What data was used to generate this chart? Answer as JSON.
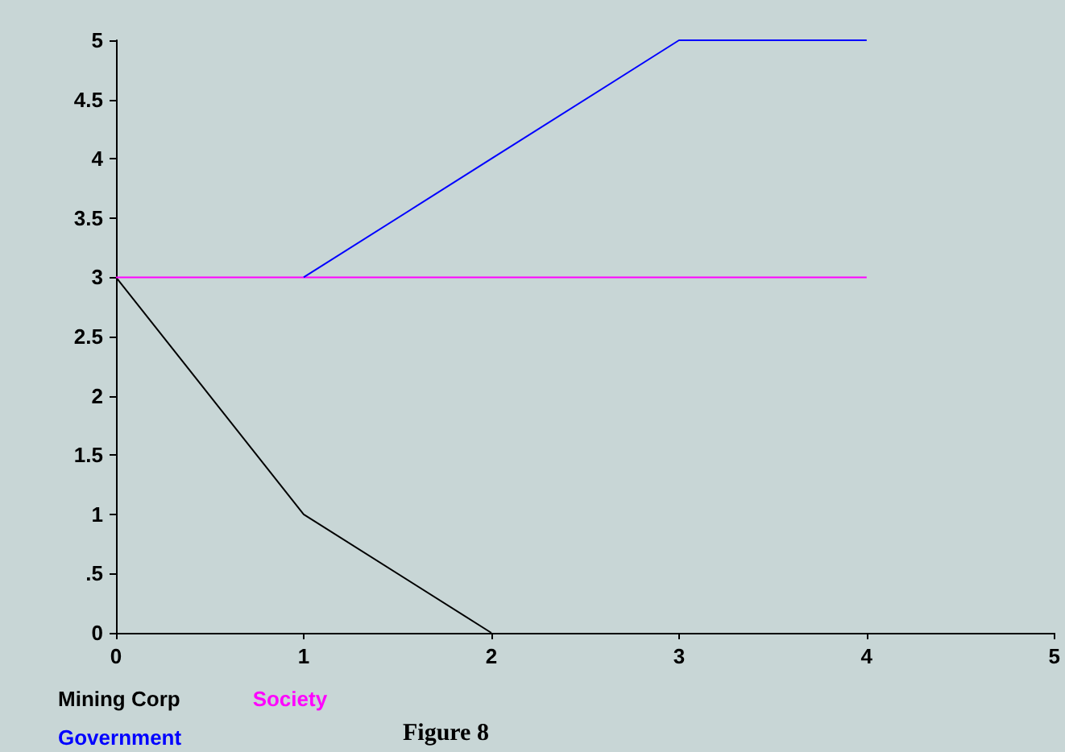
{
  "chart_data": {
    "type": "line",
    "xlim": [
      0,
      5
    ],
    "xticks": [
      0,
      1,
      2,
      3,
      4,
      5
    ],
    "ylim": [
      0,
      5
    ],
    "yticks": [
      0,
      {
        "value": 0.5,
        "label": ".5"
      },
      1,
      1.5,
      2,
      2.5,
      3,
      3.5,
      4,
      4.5,
      5
    ],
    "grid": false,
    "legend": "bottom left",
    "marker": "none",
    "series": [
      {
        "name": "Mining Corp",
        "color": "#000000",
        "x": [
          0,
          1,
          2
        ],
        "values": [
          3,
          1,
          0
        ]
      },
      {
        "name": "Society",
        "color": "#ff00ff",
        "x": [
          0,
          4
        ],
        "values": [
          3,
          3
        ]
      },
      {
        "name": "Government",
        "color": "#0000ff",
        "x": [
          1,
          2,
          3,
          4
        ],
        "values": [
          3,
          4,
          5,
          5
        ]
      }
    ],
    "annotations": [
      "Figure 8"
    ]
  }
}
